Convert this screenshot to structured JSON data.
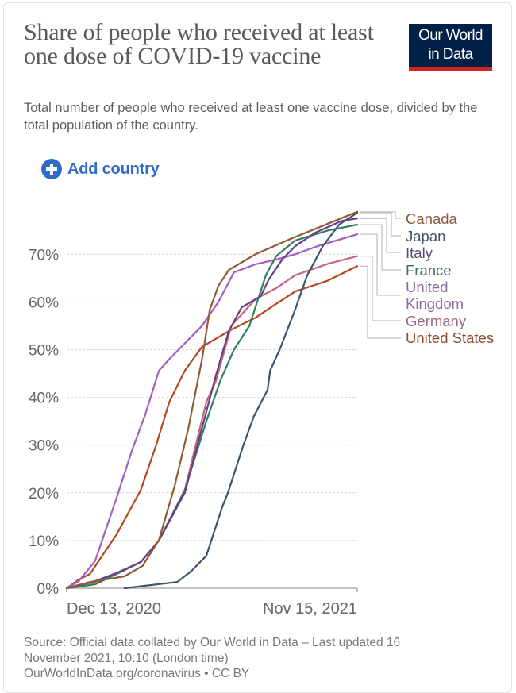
{
  "header": {
    "title": "Share of people who received at least one dose of COVID-19 vaccine",
    "subtitle": "Total number of people who received at least one vaccine dose, divided by the total population of the country.",
    "logo_line1": "Our World",
    "logo_line2": "in Data",
    "logo_colors": {
      "background": "#002147",
      "accent": "#ce261e"
    }
  },
  "controls": {
    "add_country_label": "Add country",
    "add_country_icon": "plus-circle-icon",
    "accent": "#2f6bcb"
  },
  "footer": {
    "source_line1": "Source: Official data collated by Our World in Data – Last updated 16",
    "source_line2": "November 2021, 10:10 (London time)",
    "source_line3": "OurWorldInData.org/coronavirus • CC BY"
  },
  "chart_data": {
    "type": "line",
    "title": "Share of people who received at least one dose of COVID-19 vaccine",
    "xlabel": "",
    "ylabel": "",
    "x_range": [
      "2020-12-13",
      "2021-11-15"
    ],
    "ylim": [
      0,
      80
    ],
    "yticks": [
      0,
      10,
      20,
      30,
      40,
      50,
      60,
      70
    ],
    "ytick_labels": [
      "0%",
      "10%",
      "20%",
      "30%",
      "40%",
      "50%",
      "60%",
      "70%"
    ],
    "xtick_labels": [
      "Dec 13, 2020",
      "Nov 15, 2021"
    ],
    "grid": "horizontal dashed",
    "legend": "right (line-end labels)",
    "series": [
      {
        "name": "Canada",
        "label": [
          "Canada"
        ],
        "color": "#8f5a33",
        "text_color": "#8a5a3e",
        "points": [
          [
            "2020-12-13",
            0
          ],
          [
            "2021-01-09",
            1.3
          ],
          [
            "2021-02-18",
            2.5
          ],
          [
            "2021-03-11",
            4.7
          ],
          [
            "2021-03-30",
            10.1
          ],
          [
            "2021-04-17",
            21.3
          ],
          [
            "2021-05-03",
            33.4
          ],
          [
            "2021-05-19",
            48
          ],
          [
            "2021-05-28",
            58.4
          ],
          [
            "2021-06-07",
            63.4
          ],
          [
            "2021-06-19",
            66.7
          ],
          [
            "2021-07-20",
            70
          ],
          [
            "2021-09-01",
            73.4
          ],
          [
            "2021-10-12",
            76.4
          ],
          [
            "2021-11-15",
            78.9
          ]
        ]
      },
      {
        "name": "Japan",
        "label": [
          "Japan"
        ],
        "color": "#3c5373",
        "text_color": "#3f5068",
        "points": [
          [
            "2021-02-18",
            0
          ],
          [
            "2021-04-20",
            1.3
          ],
          [
            "2021-05-06",
            3.5
          ],
          [
            "2021-05-24",
            6.8
          ],
          [
            "2021-06-11",
            16.8
          ],
          [
            "2021-06-18",
            20
          ],
          [
            "2021-07-06",
            30
          ],
          [
            "2021-07-18",
            36
          ],
          [
            "2021-08-03",
            41.6
          ],
          [
            "2021-08-06",
            45.6
          ],
          [
            "2021-08-17",
            50
          ],
          [
            "2021-09-04",
            58.4
          ],
          [
            "2021-09-18",
            65.6
          ],
          [
            "2021-10-06",
            71.7
          ],
          [
            "2021-10-25",
            76.2
          ],
          [
            "2021-11-15",
            78.7
          ]
        ]
      },
      {
        "name": "Italy",
        "label": [
          "Italy"
        ],
        "color": "#6a3d8a",
        "text_color": "#5d4a72",
        "points": [
          [
            "2020-12-13",
            0
          ],
          [
            "2021-01-15",
            1.5
          ],
          [
            "2021-02-09",
            3.2
          ],
          [
            "2021-03-09",
            5.5
          ],
          [
            "2021-03-30",
            10
          ],
          [
            "2021-04-29",
            20
          ],
          [
            "2021-05-24",
            37
          ],
          [
            "2021-06-04",
            44.6
          ],
          [
            "2021-06-19",
            53.9
          ],
          [
            "2021-07-04",
            58.9
          ],
          [
            "2021-07-26",
            61.2
          ],
          [
            "2021-08-04",
            64.6
          ],
          [
            "2021-08-20",
            68.9
          ],
          [
            "2021-09-04",
            71.7
          ],
          [
            "2021-09-27",
            74.5
          ],
          [
            "2021-10-28",
            77
          ],
          [
            "2021-11-15",
            77.5
          ]
        ]
      },
      {
        "name": "France",
        "label": [
          "France"
        ],
        "color": "#2f8060",
        "text_color": "#357364",
        "points": [
          [
            "2020-12-13",
            0
          ],
          [
            "2021-01-15",
            0.8
          ],
          [
            "2021-02-09",
            3
          ],
          [
            "2021-03-09",
            5.5
          ],
          [
            "2021-03-30",
            10
          ],
          [
            "2021-04-29",
            20.6
          ],
          [
            "2021-05-24",
            35
          ],
          [
            "2021-06-09",
            43.4
          ],
          [
            "2021-06-25",
            50
          ],
          [
            "2021-07-13",
            55
          ],
          [
            "2021-07-23",
            60.6
          ],
          [
            "2021-08-01",
            65.6
          ],
          [
            "2021-08-13",
            69.6
          ],
          [
            "2021-09-04",
            72.9
          ],
          [
            "2021-10-12",
            75
          ],
          [
            "2021-11-15",
            76.2
          ]
        ]
      },
      {
        "name": "United Kingdom",
        "label": [
          "United",
          "Kingdom"
        ],
        "color": "#a65cc0",
        "text_color": "#8d6aa0",
        "points": [
          [
            "2020-12-13",
            0
          ],
          [
            "2020-12-27",
            1.5
          ],
          [
            "2021-01-15",
            5.7
          ],
          [
            "2021-02-09",
            19
          ],
          [
            "2021-02-27",
            29
          ],
          [
            "2021-03-14",
            36.3
          ],
          [
            "2021-03-30",
            45.6
          ],
          [
            "2021-04-11",
            48
          ],
          [
            "2021-05-19",
            55
          ],
          [
            "2021-06-07",
            60
          ],
          [
            "2021-06-25",
            66.2
          ],
          [
            "2021-07-20",
            67.9
          ],
          [
            "2021-08-13",
            68.9
          ],
          [
            "2021-09-04",
            70
          ],
          [
            "2021-09-30",
            71.7
          ],
          [
            "2021-11-15",
            74.2
          ]
        ]
      },
      {
        "name": "Germany",
        "label": [
          "Germany"
        ],
        "color": "#c4667a",
        "text_color": "#a06a7c",
        "points": [
          [
            "2020-12-13",
            0
          ],
          [
            "2021-01-15",
            1.2
          ],
          [
            "2021-02-09",
            3
          ],
          [
            "2021-03-09",
            5.5
          ],
          [
            "2021-03-30",
            10
          ],
          [
            "2021-04-29",
            20.6
          ],
          [
            "2021-05-24",
            39
          ],
          [
            "2021-06-04",
            43.4
          ],
          [
            "2021-06-22",
            55
          ],
          [
            "2021-07-20",
            60.6
          ],
          [
            "2021-08-13",
            62.9
          ],
          [
            "2021-09-04",
            65.6
          ],
          [
            "2021-10-12",
            68
          ],
          [
            "2021-11-15",
            69.6
          ]
        ]
      },
      {
        "name": "United States",
        "label": [
          "United States"
        ],
        "color": "#b5461d",
        "text_color": "#8c4a2a",
        "points": [
          [
            "2020-12-13",
            0
          ],
          [
            "2020-12-27",
            1.8
          ],
          [
            "2021-01-09",
            3
          ],
          [
            "2021-02-09",
            11.3
          ],
          [
            "2021-03-09",
            20.6
          ],
          [
            "2021-03-27",
            30.1
          ],
          [
            "2021-04-11",
            39
          ],
          [
            "2021-04-29",
            45.6
          ],
          [
            "2021-05-19",
            50.6
          ],
          [
            "2021-06-22",
            54.2
          ],
          [
            "2021-07-20",
            56.7
          ],
          [
            "2021-08-13",
            59.6
          ],
          [
            "2021-09-04",
            62.2
          ],
          [
            "2021-10-12",
            64.5
          ],
          [
            "2021-11-15",
            67.5
          ]
        ]
      }
    ]
  }
}
